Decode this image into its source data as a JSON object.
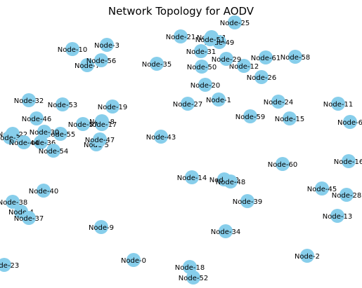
{
  "title": "Network Topology for AODV",
  "node_color": "#87CEEB",
  "nodes": [
    "Node-0",
    "Node-1",
    "Node-2",
    "Node-3",
    "Node-4",
    "Node-5",
    "Node-7",
    "Node-8",
    "Node-9",
    "Node-10",
    "Node-11",
    "Node-12",
    "Node-13",
    "Node-14",
    "Node-15",
    "Node-17",
    "Node-18",
    "Node-19",
    "Node-20",
    "Node-21",
    "Node-22",
    "Node-23",
    "Node-24",
    "Node-25",
    "Node-26",
    "Node-27",
    "Node-28",
    "Node-29",
    "Node-31",
    "Node-32",
    "Node-33",
    "Node-34",
    "Node-35",
    "Node-36",
    "Node-37",
    "Node-38",
    "Node-39",
    "Node-40",
    "Node-41",
    "Node-42",
    "Node-43",
    "Node-44",
    "Node-45",
    "Node-46",
    "Node-47",
    "Node-48",
    "Node-49",
    "Node-50",
    "Node-51",
    "Node-52",
    "Node-53",
    "Node-54",
    "Node-55",
    "Node-56",
    "Node-58",
    "Node-59",
    "Node-60",
    "Node-61",
    "Node-6",
    "Node-16",
    "Node-30",
    "Node-57"
  ]
}
